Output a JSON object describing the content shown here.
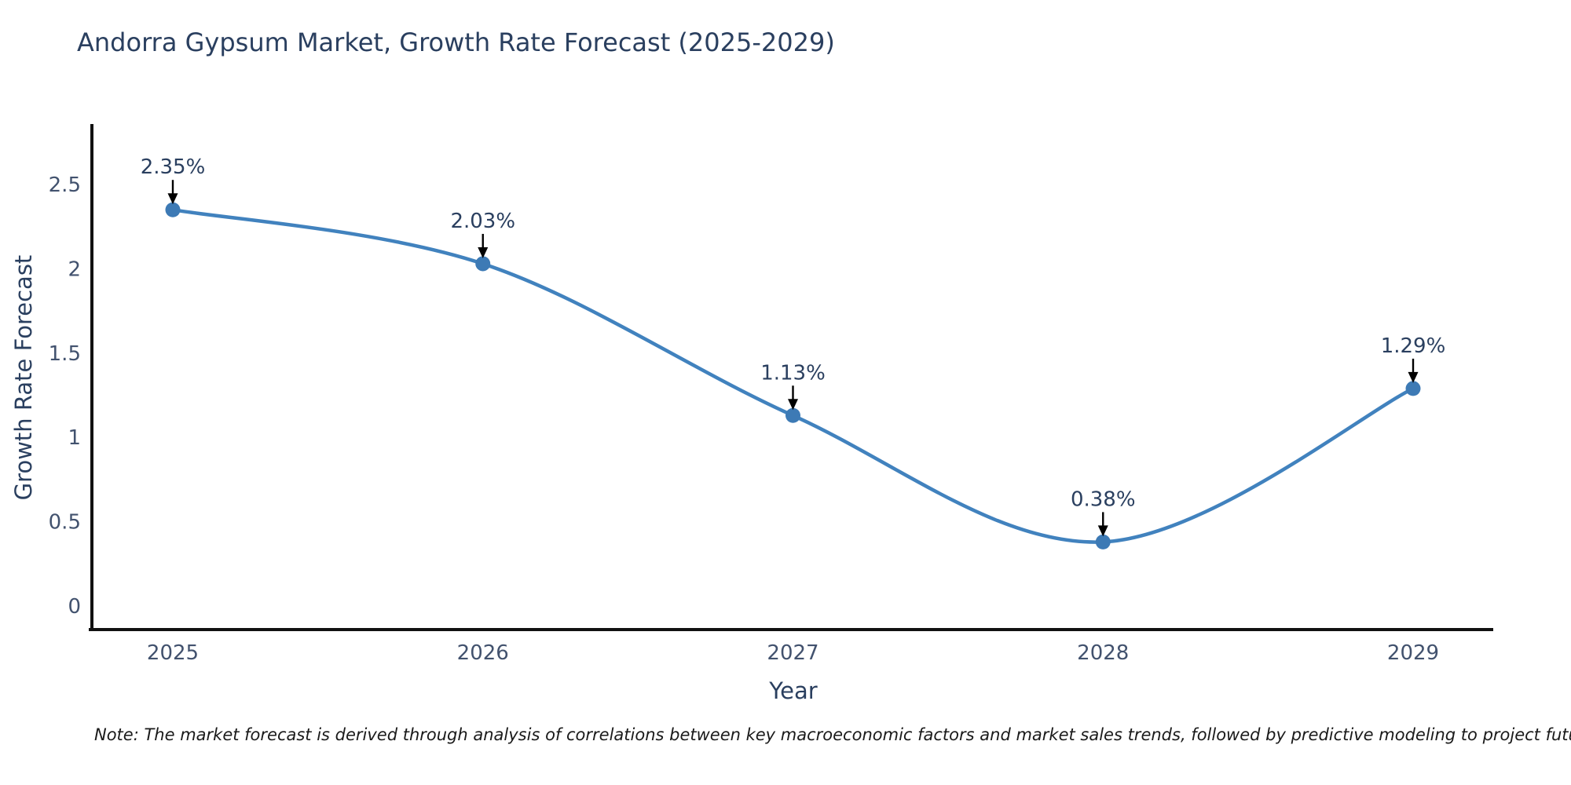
{
  "title": "Andorra Gypsum Market, Growth Rate Forecast (2025-2029)",
  "note": "Note: The market forecast is derived through analysis of correlations between key macroeconomic factors and market sales trends, followed by predictive modeling to project future sales",
  "chart_data": {
    "type": "line",
    "line_shape": "spline",
    "title": "Andorra Gypsum Market, Growth Rate Forecast (2025-2029)",
    "xlabel": "Year",
    "ylabel": "Growth Rate Forecast",
    "categories": [
      "2025",
      "2026",
      "2027",
      "2028",
      "2029"
    ],
    "values": [
      2.35,
      2.03,
      1.13,
      0.38,
      1.29
    ],
    "point_labels": [
      "2.35%",
      "2.03%",
      "1.13%",
      "0.38%",
      "1.29%"
    ],
    "yticks": [
      "0",
      "0.5",
      "1",
      "1.5",
      "2",
      "2.5"
    ],
    "ytick_values": [
      0,
      0.5,
      1,
      1.5,
      2,
      2.5
    ],
    "ylim": [
      0,
      2.85
    ],
    "grid": false,
    "legend": "none",
    "annotations": "value labels with down arrows above each point",
    "colors": {
      "line": "#4182be",
      "marker": "#3d7ab5",
      "axis": "#111111",
      "tick_text": "#42526e",
      "title_text": "#2a3f5f",
      "arrow": "#000000"
    }
  }
}
